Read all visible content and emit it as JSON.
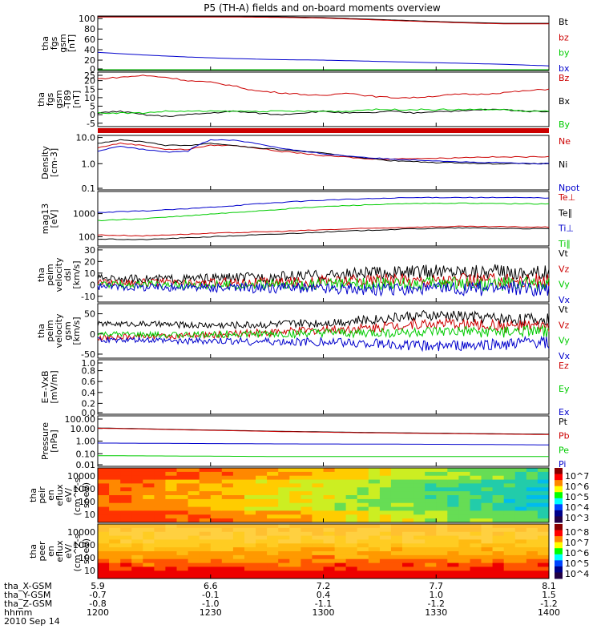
{
  "title": "P5 (TH-A) fields and on-board moments overview",
  "colors": {
    "black": "#000000",
    "red": "#cc0000",
    "green": "#00cc00",
    "blue": "#0000cc"
  },
  "chart_data": [
    {
      "type": "line",
      "panel": "fgs",
      "ylabel": [
        "tha",
        "fgs",
        "gsm",
        "[nT]"
      ],
      "yticks": [
        "100",
        "80",
        "60",
        "40",
        "20",
        "0"
      ],
      "ylim": [
        0,
        105
      ],
      "series": [
        {
          "name": "Bt",
          "color": "black",
          "x": [
            0,
            6,
            10,
            20,
            30,
            40,
            50,
            60,
            70,
            80,
            90,
            100
          ],
          "y": [
            104,
            104,
            104,
            104,
            104,
            103.5,
            102,
            99,
            96,
            93,
            91,
            91
          ]
        },
        {
          "name": "bz",
          "color": "red",
          "x": [
            0,
            6,
            10,
            20,
            30,
            40,
            50,
            60,
            70,
            80,
            90,
            100
          ],
          "y": [
            103,
            103,
            103,
            103,
            103,
            102.5,
            101,
            98,
            95,
            92,
            90,
            90
          ]
        },
        {
          "name": "by",
          "color": "green",
          "x": [
            0,
            20,
            40,
            60,
            80,
            100
          ],
          "y": [
            1,
            1,
            1,
            1,
            1,
            1
          ]
        },
        {
          "name": "bx",
          "color": "blue",
          "x": [
            0,
            10,
            20,
            30,
            40,
            50,
            60,
            70,
            80,
            90,
            100
          ],
          "y": [
            35,
            30,
            26,
            23,
            21,
            20,
            18,
            16,
            14,
            12,
            9
          ]
        }
      ]
    },
    {
      "type": "line",
      "panel": "fgs-dsl",
      "ylabel": [
        "tha",
        "fgs",
        "gsm",
        "-T89",
        "[nT]"
      ],
      "yticks": [
        "25",
        "20",
        "15",
        "10",
        "5",
        "0",
        "-5"
      ],
      "ylim": [
        -7,
        25
      ],
      "series": [
        {
          "name": "Bz",
          "color": "red",
          "x": [
            0,
            5,
            10,
            15,
            20,
            25,
            30,
            35,
            40,
            45,
            50,
            55,
            60,
            65,
            70,
            75,
            80,
            85,
            90,
            95,
            100
          ],
          "y": [
            21,
            22,
            23,
            22,
            20,
            19,
            17,
            14,
            13,
            12,
            11,
            13,
            11,
            10,
            10,
            11,
            12,
            12,
            13,
            14,
            15
          ]
        },
        {
          "name": "Bx",
          "color": "black",
          "x": [
            0,
            5,
            10,
            15,
            20,
            25,
            30,
            35,
            40,
            45,
            50,
            55,
            60,
            65,
            70,
            75,
            80,
            85,
            90,
            95,
            100
          ],
          "y": [
            1,
            2,
            0,
            -1,
            0,
            1,
            2,
            1,
            0,
            1,
            2,
            1,
            1,
            2,
            1,
            2,
            2,
            3,
            3,
            2,
            2
          ]
        },
        {
          "name": "By",
          "color": "green",
          "x": [
            0,
            5,
            10,
            15,
            20,
            25,
            30,
            35,
            40,
            45,
            50,
            55,
            60,
            65,
            70,
            75,
            80,
            85,
            90,
            95,
            100
          ],
          "y": [
            1,
            1,
            1,
            2,
            2,
            2,
            2,
            2,
            2,
            2,
            2,
            2,
            3,
            3,
            3,
            3,
            3,
            3,
            3,
            2,
            2
          ]
        }
      ]
    },
    {
      "type": "line",
      "panel": "density",
      "ylabel": [
        "Density",
        "[cm-3]"
      ],
      "yscale": "log",
      "yticks": [
        "10.0",
        "1.0",
        "0.1"
      ],
      "ylim": [
        0.1,
        12
      ],
      "series": [
        {
          "name": "Ne",
          "color": "red",
          "x": [
            0,
            5,
            10,
            15,
            20,
            25,
            30,
            35,
            40,
            45,
            50,
            55,
            60,
            65,
            70,
            75,
            80,
            85,
            90,
            95,
            100
          ],
          "y": [
            4,
            6,
            5,
            3.5,
            3.5,
            5,
            5,
            4,
            3,
            2.5,
            2,
            1.8,
            1.5,
            1.5,
            1.6,
            1.6,
            1.7,
            1.8,
            1.8,
            1.8,
            1.9
          ]
        },
        {
          "name": "Ni",
          "color": "black",
          "x": [
            0,
            5,
            10,
            15,
            20,
            25,
            30,
            35,
            40,
            45,
            50,
            55,
            60,
            65,
            70,
            75,
            80,
            85,
            90,
            95,
            100
          ],
          "y": [
            6,
            8,
            7,
            5,
            5,
            6,
            5,
            4,
            3.5,
            3,
            2.5,
            2,
            1.6,
            1.3,
            1.2,
            1.1,
            1.1,
            1.0,
            1.0,
            1.0,
            1.0
          ]
        },
        {
          "name": "Npot",
          "color": "blue",
          "x": [
            0,
            5,
            10,
            15,
            20,
            25,
            30,
            35,
            40,
            45,
            50,
            55,
            60,
            65,
            70,
            75,
            80,
            85,
            90,
            95,
            100
          ],
          "y": [
            3,
            4.5,
            3.5,
            2.8,
            3,
            8,
            8,
            6,
            4,
            3,
            2.4,
            2,
            1.7,
            1.5,
            1.4,
            1.3,
            1.2,
            1.1,
            1.1,
            1.0,
            1.0
          ]
        }
      ]
    },
    {
      "type": "line",
      "panel": "temperature",
      "ylabel": [
        "mag13",
        "[eV]"
      ],
      "yscale": "log",
      "yticks": [
        "1000",
        "100"
      ],
      "ylim": [
        40,
        9000
      ],
      "series": [
        {
          "name": "Te⊥",
          "color": "red",
          "x": [
            0,
            10,
            20,
            30,
            40,
            50,
            60,
            70,
            80,
            90,
            100
          ],
          "y": [
            120,
            110,
            130,
            150,
            170,
            200,
            230,
            260,
            280,
            270,
            260
          ]
        },
        {
          "name": "Te∥",
          "color": "black",
          "x": [
            0,
            10,
            20,
            30,
            40,
            50,
            60,
            70,
            80,
            90,
            100
          ],
          "y": [
            80,
            75,
            90,
            110,
            130,
            160,
            190,
            220,
            240,
            230,
            220
          ]
        },
        {
          "name": "Ti⊥",
          "color": "blue",
          "x": [
            0,
            10,
            20,
            30,
            40,
            50,
            60,
            70,
            80,
            90,
            100
          ],
          "y": [
            1100,
            1300,
            1600,
            2200,
            3000,
            3800,
            4400,
            4900,
            5000,
            4900,
            4800
          ]
        },
        {
          "name": "Ti∥",
          "color": "green",
          "x": [
            0,
            10,
            20,
            30,
            40,
            50,
            60,
            70,
            80,
            90,
            100
          ],
          "y": [
            500,
            600,
            800,
            1100,
            1500,
            2000,
            2400,
            2700,
            2800,
            2700,
            2600
          ]
        }
      ]
    },
    {
      "type": "line",
      "panel": "peim-dsl",
      "ylabel": [
        "tha",
        "peim",
        "velocity",
        "dsl",
        "[km/s]"
      ],
      "yticks": [
        "30",
        "20",
        "10",
        "0",
        "-10"
      ],
      "ylim": [
        -15,
        32
      ],
      "series": [
        {
          "name": "Vt",
          "color": "black",
          "x": [
            0,
            10,
            20,
            30,
            40,
            50,
            60,
            70,
            80,
            90,
            100
          ],
          "y": [
            6,
            5,
            5,
            6,
            7,
            8,
            10,
            11,
            12,
            11,
            10
          ]
        },
        {
          "name": "Vz",
          "color": "red",
          "x": [
            0,
            10,
            20,
            30,
            40,
            50,
            60,
            70,
            80,
            90,
            100
          ],
          "y": [
            2,
            2,
            1,
            2,
            2,
            3,
            4,
            4,
            4,
            4,
            3
          ]
        },
        {
          "name": "Vy",
          "color": "green",
          "x": [
            0,
            10,
            20,
            30,
            40,
            50,
            60,
            70,
            80,
            90,
            100
          ],
          "y": [
            0,
            0,
            0,
            0,
            0,
            0,
            1,
            1,
            1,
            0,
            0
          ]
        },
        {
          "name": "Vx",
          "color": "blue",
          "x": [
            0,
            10,
            20,
            30,
            40,
            50,
            60,
            70,
            80,
            90,
            100
          ],
          "y": [
            -2,
            -2,
            -2,
            -3,
            -3,
            -3,
            -4,
            -4,
            -4,
            -3,
            -3
          ]
        }
      ]
    },
    {
      "type": "line",
      "panel": "peim-gsm",
      "ylabel": [
        "tha",
        "peim",
        "velocity",
        "gsm",
        "[km/s]"
      ],
      "yticks": [
        "50",
        "0",
        "-50"
      ],
      "ylim": [
        -60,
        75
      ],
      "series": [
        {
          "name": "Vt",
          "color": "black",
          "x": [
            0,
            10,
            20,
            30,
            40,
            50,
            60,
            70,
            80,
            90,
            100
          ],
          "y": [
            25,
            25,
            22,
            22,
            24,
            28,
            35,
            45,
            45,
            38,
            35
          ]
        },
        {
          "name": "Vz",
          "color": "red",
          "x": [
            0,
            10,
            20,
            30,
            40,
            50,
            60,
            70,
            80,
            90,
            100
          ],
          "y": [
            -10,
            -5,
            -5,
            0,
            5,
            10,
            15,
            25,
            25,
            20,
            18
          ]
        },
        {
          "name": "Vy",
          "color": "green",
          "x": [
            0,
            10,
            20,
            30,
            40,
            50,
            60,
            70,
            80,
            90,
            100
          ],
          "y": [
            0,
            -2,
            -2,
            0,
            0,
            2,
            2,
            5,
            5,
            5,
            5
          ]
        },
        {
          "name": "Vx",
          "color": "blue",
          "x": [
            0,
            10,
            20,
            30,
            40,
            50,
            60,
            70,
            80,
            90,
            100
          ],
          "y": [
            -15,
            -15,
            -18,
            -18,
            -20,
            -20,
            -22,
            -28,
            -30,
            -25,
            -20
          ]
        }
      ]
    },
    {
      "type": "line",
      "panel": "efield",
      "ylabel": [
        "E=-VxB",
        "[mV/m]"
      ],
      "yticks": [
        "1.0",
        "0.8",
        "0.6",
        "0.4",
        "0.2",
        "0.0"
      ],
      "ylim": [
        0,
        1
      ],
      "series": [
        {
          "name": "Ez",
          "color": "red",
          "x": [],
          "y": []
        },
        {
          "name": "Ey",
          "color": "green",
          "x": [],
          "y": []
        },
        {
          "name": "Ex",
          "color": "blue",
          "x": [],
          "y": []
        }
      ]
    },
    {
      "type": "line",
      "panel": "pressure",
      "ylabel": [
        "Pressure",
        "[nPa]"
      ],
      "yscale": "log",
      "yticks": [
        "100.00",
        "10.00",
        "1.00",
        "0.10",
        "0.01"
      ],
      "ylim": [
        0.01,
        100
      ],
      "series": [
        {
          "name": "Pt",
          "color": "black",
          "x": [
            0,
            20,
            40,
            60,
            80,
            100
          ],
          "y": [
            11,
            8,
            6,
            4.8,
            4.0,
            3.5
          ]
        },
        {
          "name": "Pb",
          "color": "red",
          "x": [
            0,
            20,
            40,
            60,
            80,
            100
          ],
          "y": [
            10.5,
            7.6,
            5.7,
            4.5,
            3.8,
            3.3
          ]
        },
        {
          "name": "Pe",
          "color": "green",
          "x": [
            0,
            20,
            40,
            60,
            80,
            100
          ],
          "y": [
            0.07,
            0.065,
            0.06,
            0.06,
            0.06,
            0.06
          ]
        },
        {
          "name": "Pi",
          "color": "blue",
          "x": [
            0,
            20,
            40,
            60,
            80,
            100
          ],
          "y": [
            0.7,
            0.65,
            0.6,
            0.58,
            0.55,
            0.5
          ]
        }
      ]
    },
    {
      "type": "heatmap",
      "panel": "peir",
      "ylabel": [
        "tha",
        "peir",
        "en",
        "eflux",
        "eV/",
        "(cm^2-s-",
        "sr-eV)"
      ],
      "yticks": [
        "10000",
        "1000",
        "100",
        "10"
      ],
      "colorbar": {
        "labels": [
          "10^7",
          "10^6",
          "10^5",
          "10^4",
          "10^3"
        ]
      }
    },
    {
      "type": "heatmap",
      "panel": "peer",
      "ylabel": [
        "tha",
        "peer",
        "en",
        "eflux",
        "eV/",
        "(cm^2-s-",
        "sr-eV)"
      ],
      "yticks": [
        "10000",
        "1000",
        "100",
        "10"
      ],
      "colorbar": {
        "labels": [
          "10^8",
          "10^7",
          "10^6",
          "10^5",
          "10^4"
        ]
      }
    }
  ],
  "xaxis": {
    "row_labels": [
      "tha_X-GSM",
      "tha_Y-GSM",
      "tha_Z-GSM",
      "hhmm",
      "2010 Sep 14"
    ],
    "ticks": [
      {
        "x": "5.9",
        "y": "-0.7",
        "z": "-0.8",
        "t": "1200"
      },
      {
        "x": "6.6",
        "y": "-0.1",
        "z": "-1.0",
        "t": "1230"
      },
      {
        "x": "7.2",
        "y": "0.4",
        "z": "-1.1",
        "t": "1300"
      },
      {
        "x": "7.7",
        "y": "1.0",
        "z": "-1.2",
        "t": "1330"
      },
      {
        "x": "8.1",
        "y": "1.5",
        "z": "-1.2",
        "t": "1400"
      }
    ]
  }
}
